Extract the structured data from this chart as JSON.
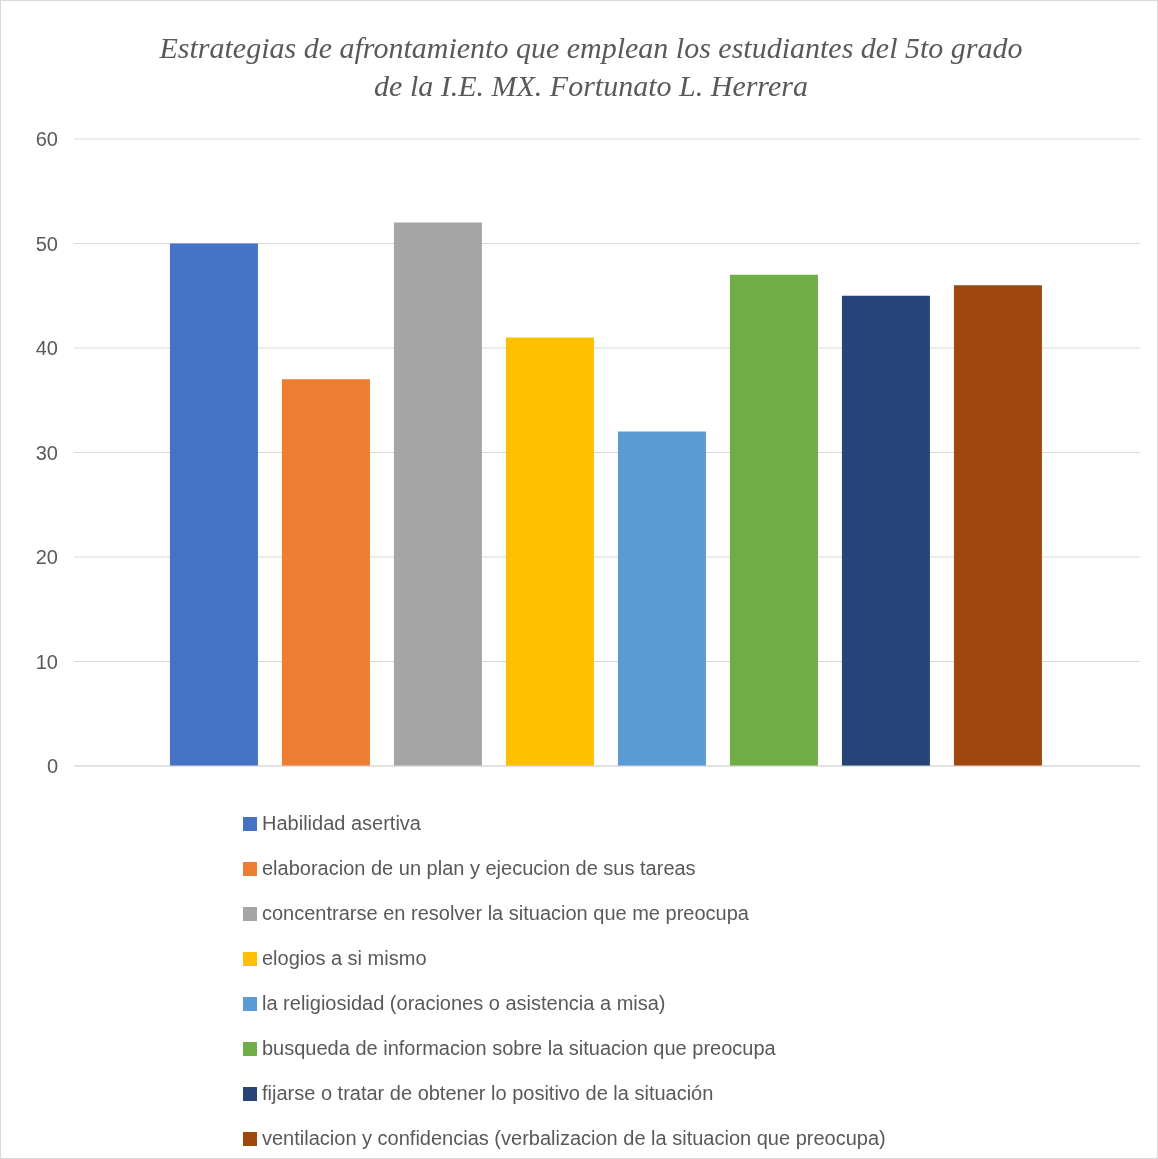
{
  "chart_data": {
    "type": "bar",
    "title": "Estrategias de afrontamiento que emplean los estudiantes del 5to grado de la I.E. MX. Fortunato L. Herrera",
    "categories": [
      null
    ],
    "series": [
      {
        "name": "Habilidad asertiva",
        "color": "#4472c4",
        "values": [
          50
        ]
      },
      {
        "name": "elaboracion de un plan y ejecucion de sus tareas",
        "color": "#ed7d31",
        "values": [
          37
        ]
      },
      {
        "name": "concentrarse en resolver la situacion que me preocupa",
        "color": "#a5a5a5",
        "values": [
          52
        ]
      },
      {
        "name": "elogios a si mismo",
        "color": "#ffc000",
        "values": [
          41
        ]
      },
      {
        "name": "la religiosidad (oraciones o asistencia a misa)",
        "color": "#5b9bd5",
        "values": [
          32
        ]
      },
      {
        "name": "busqueda de informacion sobre la situacion que preocupa",
        "color": "#70ad47",
        "values": [
          47
        ]
      },
      {
        "name": "fijarse o tratar de obtener lo positivo de la situación",
        "color": "#264478",
        "values": [
          45
        ]
      },
      {
        "name": "ventilacion y confidencias (verbalizacion de la situacion que preocupa)",
        "color": "#9e480e",
        "values": [
          46
        ]
      }
    ],
    "ylim": [
      0,
      60
    ],
    "yticks": [
      0,
      10,
      20,
      30,
      40,
      50,
      60
    ],
    "grid": "y",
    "legend": "bottom"
  }
}
